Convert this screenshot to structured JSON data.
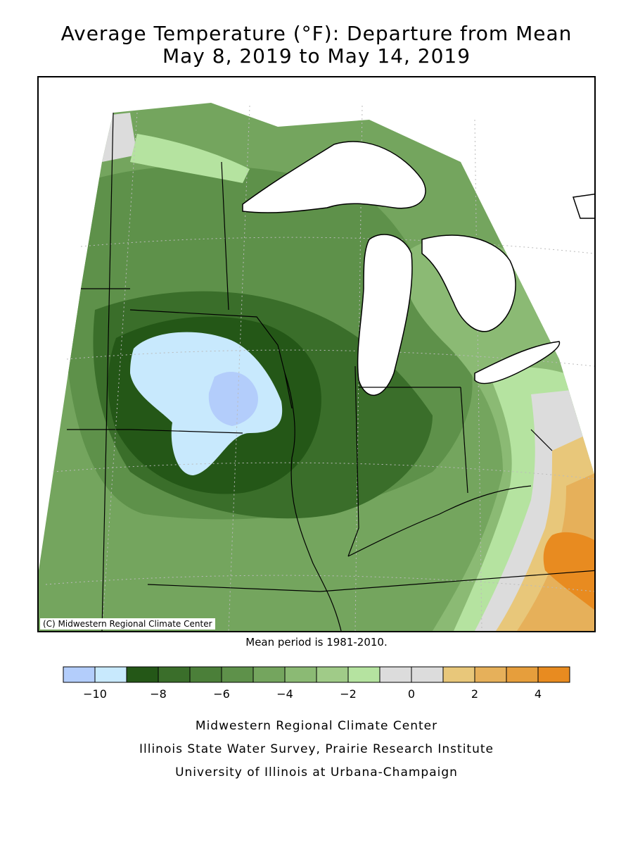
{
  "title": {
    "line1": "Average Temperature (°F): Departure from Mean",
    "line2": "May 8, 2019 to May 14, 2019"
  },
  "map": {
    "copyright": "(C) Midwestern Regional Climate Center",
    "region": "Midwest US"
  },
  "mean_period": "Mean period is 1981-2010.",
  "legend": {
    "bins": [
      {
        "min": -11,
        "max": -10,
        "color": "#b3cdfb"
      },
      {
        "min": -10,
        "max": -9,
        "color": "#c8e9fd"
      },
      {
        "min": -9,
        "max": -8,
        "color": "#245717"
      },
      {
        "min": -8,
        "max": -7,
        "color": "#3a6e2a"
      },
      {
        "min": -7,
        "max": -6,
        "color": "#4b7f39"
      },
      {
        "min": -6,
        "max": -5,
        "color": "#5e914a"
      },
      {
        "min": -5,
        "max": -4,
        "color": "#74a55e"
      },
      {
        "min": -4,
        "max": -3,
        "color": "#8bba74"
      },
      {
        "min": -3,
        "max": -2,
        "color": "#a0cb88"
      },
      {
        "min": -2,
        "max": -1,
        "color": "#b5e3a0"
      },
      {
        "min": -1,
        "max": 0,
        "color": "#dcdcdc"
      },
      {
        "min": 0,
        "max": 1,
        "color": "#dcdcdc"
      },
      {
        "min": 1,
        "max": 2,
        "color": "#e8c77a"
      },
      {
        "min": 2,
        "max": 3,
        "color": "#e6b05a"
      },
      {
        "min": 3,
        "max": 4,
        "color": "#e69e3c"
      },
      {
        "min": 4,
        "max": 5,
        "color": "#e88b20"
      }
    ],
    "tick_labels": [
      "-10",
      "-8",
      "-6",
      "-4",
      "-2",
      "0",
      "2",
      "4"
    ]
  },
  "credits": {
    "line1": "Midwestern Regional Climate Center",
    "line2": "Illinois State Water Survey, Prairie Research Institute",
    "line3": "University of Illinois at Urbana-Champaign"
  },
  "colors": {
    "lake": "#ffffff",
    "border": "#000000",
    "graticule": "#bbbbbb"
  }
}
